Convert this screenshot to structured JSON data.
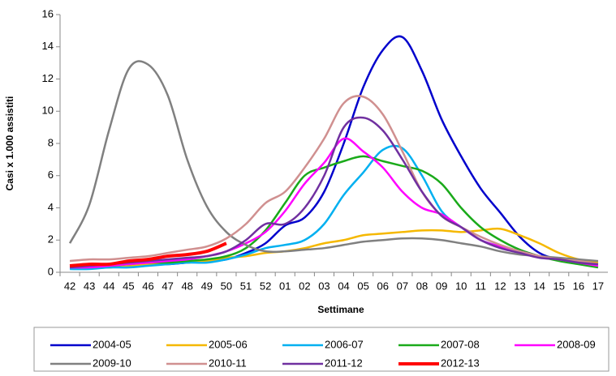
{
  "chart_data": {
    "type": "line",
    "x_label": "Settimane",
    "y_label": "Casi x 1.000 assistiti",
    "categories": [
      "42",
      "43",
      "44",
      "45",
      "46",
      "47",
      "48",
      "49",
      "50",
      "51",
      "52",
      "01",
      "02",
      "03",
      "04",
      "05",
      "06",
      "07",
      "08",
      "09",
      "10",
      "11",
      "12",
      "13",
      "14",
      "15",
      "16",
      "17"
    ],
    "ylim": [
      0,
      16
    ],
    "yticks": [
      0,
      2,
      4,
      6,
      8,
      10,
      12,
      14,
      16
    ],
    "legend": "bottom",
    "series": [
      {
        "name": "2004-05",
        "color": "#0000cc",
        "values": [
          0.3,
          0.3,
          0.3,
          0.4,
          0.5,
          0.5,
          0.6,
          0.7,
          0.8,
          1.2,
          1.8,
          2.9,
          3.4,
          5.0,
          8.0,
          11.5,
          13.8,
          14.6,
          12.5,
          9.5,
          7.2,
          5.2,
          3.7,
          2.2,
          1.2,
          0.8,
          0.6,
          0.5
        ]
      },
      {
        "name": "2005-06",
        "color": "#f5b800",
        "values": [
          0.3,
          0.3,
          0.3,
          0.4,
          0.5,
          0.6,
          0.6,
          0.7,
          0.9,
          1.0,
          1.2,
          1.3,
          1.5,
          1.8,
          2.0,
          2.3,
          2.4,
          2.5,
          2.6,
          2.6,
          2.5,
          2.6,
          2.7,
          2.3,
          1.8,
          1.2,
          0.8,
          0.6
        ]
      },
      {
        "name": "2006-07",
        "color": "#00b0f0",
        "values": [
          0.2,
          0.2,
          0.3,
          0.3,
          0.4,
          0.5,
          0.6,
          0.6,
          0.8,
          1.1,
          1.5,
          1.7,
          2.0,
          3.0,
          4.8,
          6.2,
          7.6,
          7.7,
          6.0,
          3.8,
          2.8,
          2.0,
          1.6,
          1.2,
          1.0,
          0.8,
          0.6,
          0.5
        ]
      },
      {
        "name": "2007-08",
        "color": "#1aaa1a",
        "values": [
          0.4,
          0.4,
          0.4,
          0.5,
          0.6,
          0.6,
          0.7,
          0.8,
          1.0,
          1.5,
          2.6,
          4.3,
          6.0,
          6.5,
          6.9,
          7.2,
          6.9,
          6.6,
          6.3,
          5.5,
          4.0,
          2.8,
          2.0,
          1.4,
          1.0,
          0.7,
          0.5,
          0.3
        ]
      },
      {
        "name": "2008-09",
        "color": "#ff00ff",
        "values": [
          0.3,
          0.3,
          0.4,
          0.5,
          0.6,
          0.7,
          0.8,
          1.0,
          1.3,
          1.8,
          2.5,
          3.8,
          5.5,
          6.8,
          8.3,
          7.5,
          6.5,
          5.0,
          4.0,
          3.6,
          2.8,
          2.0,
          1.6,
          1.3,
          1.0,
          0.8,
          0.6,
          0.4
        ]
      },
      {
        "name": "2009-10",
        "color": "#808080",
        "values": [
          1.8,
          4.2,
          8.8,
          12.6,
          12.9,
          11.0,
          7.0,
          4.1,
          2.5,
          1.7,
          1.3,
          1.3,
          1.4,
          1.5,
          1.7,
          1.9,
          2.0,
          2.1,
          2.1,
          2.0,
          1.8,
          1.6,
          1.3,
          1.1,
          1.0,
          0.9,
          0.8,
          0.7
        ]
      },
      {
        "name": "2010-11",
        "color": "#d09090",
        "values": [
          0.7,
          0.8,
          0.8,
          0.9,
          1.0,
          1.2,
          1.4,
          1.6,
          2.1,
          3.0,
          4.3,
          5.0,
          6.5,
          8.3,
          10.5,
          10.9,
          9.8,
          7.5,
          5.0,
          3.5,
          2.8,
          2.2,
          1.7,
          1.3,
          1.0,
          0.8,
          0.7,
          0.5
        ]
      },
      {
        "name": "2011-12",
        "color": "#7030a0",
        "values": [
          0.3,
          0.4,
          0.5,
          0.6,
          0.7,
          0.8,
          0.9,
          1.0,
          1.3,
          2.0,
          3.0,
          3.0,
          4.0,
          6.0,
          9.0,
          9.6,
          8.8,
          7.0,
          5.0,
          3.5,
          2.8,
          2.0,
          1.5,
          1.2,
          0.9,
          0.8,
          0.6,
          0.5
        ]
      },
      {
        "name": "2012-13",
        "color": "#ff0000",
        "width": 4,
        "values": [
          0.4,
          0.5,
          0.5,
          0.7,
          0.8,
          1.0,
          1.1,
          1.3,
          1.8,
          null,
          null,
          null,
          null,
          null,
          null,
          null,
          null,
          null,
          null,
          null,
          null,
          null,
          null,
          null,
          null,
          null,
          null,
          null
        ]
      }
    ]
  }
}
